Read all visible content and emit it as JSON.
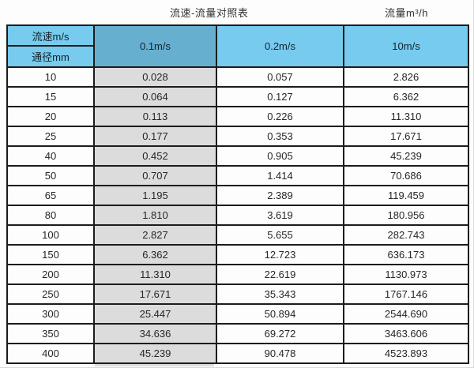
{
  "chart_data": {
    "type": "table",
    "title": "流速-流量对照表",
    "units_label": "流量m³/h",
    "corner": {
      "top": "流速m/s",
      "bottom": "通径mm"
    },
    "columns": [
      "0.1m/s",
      "0.2m/s",
      "10m/s"
    ],
    "rows": [
      {
        "diameter": "10",
        "values": [
          "0.028",
          "0.057",
          "2.826"
        ]
      },
      {
        "diameter": "15",
        "values": [
          "0.064",
          "0.127",
          "6.362"
        ]
      },
      {
        "diameter": "20",
        "values": [
          "0.113",
          "0.226",
          "11.310"
        ]
      },
      {
        "diameter": "25",
        "values": [
          "0.177",
          "0.353",
          "17.671"
        ]
      },
      {
        "diameter": "40",
        "values": [
          "0.452",
          "0.905",
          "45.239"
        ]
      },
      {
        "diameter": "50",
        "values": [
          "0.707",
          "1.414",
          "70.686"
        ]
      },
      {
        "diameter": "65",
        "values": [
          "1.195",
          "2.389",
          "119.459"
        ]
      },
      {
        "diameter": "80",
        "values": [
          "1.810",
          "3.619",
          "180.956"
        ]
      },
      {
        "diameter": "100",
        "values": [
          "2.827",
          "5.655",
          "282.743"
        ]
      },
      {
        "diameter": "150",
        "values": [
          "6.362",
          "12.723",
          "636.173"
        ]
      },
      {
        "diameter": "200",
        "values": [
          "11.310",
          "22.619",
          "1130.973"
        ]
      },
      {
        "diameter": "250",
        "values": [
          "17.671",
          "35.343",
          "1767.146"
        ]
      },
      {
        "diameter": "300",
        "values": [
          "25.447",
          "50.894",
          "2544.690"
        ]
      },
      {
        "diameter": "350",
        "values": [
          "34.636",
          "69.272",
          "3463.606"
        ]
      },
      {
        "diameter": "400",
        "values": [
          "45.239",
          "90.478",
          "4523.893"
        ]
      }
    ],
    "layout": {
      "grid": "on",
      "highlighted_column": "0.1m/s"
    },
    "colors": {
      "header_blue": "#76cbee",
      "header_blue_selected": "#67afcf",
      "highlight_column_gray": "#dcdcdc",
      "border": "#1c1c1c",
      "background": "#fdfdfd",
      "text": "#262626"
    }
  }
}
